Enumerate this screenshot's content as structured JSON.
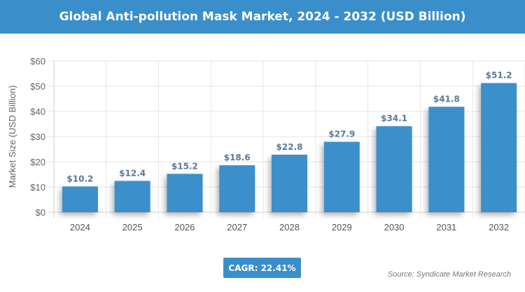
{
  "title": "Global Anti-pollution Mask Market, 2024 - 2032 (USD Billion)",
  "cagr": "CAGR: 22.41%",
  "source": "Source: Syndicate Market Research",
  "chart_data": {
    "type": "bar",
    "categories": [
      "2024",
      "2025",
      "2026",
      "2027",
      "2028",
      "2029",
      "2030",
      "2031",
      "2032"
    ],
    "values": [
      10.2,
      12.4,
      15.2,
      18.6,
      22.8,
      27.9,
      34.1,
      41.8,
      51.2
    ],
    "data_labels": [
      "$10.2",
      "$12.4",
      "$15.2",
      "$18.6",
      "$22.8",
      "$27.9",
      "$34.1",
      "$41.8",
      "$51.2"
    ],
    "ylabel": "Market Size (USD Billion)",
    "ylim": [
      0,
      60
    ],
    "yticks": [
      "$0",
      "$10",
      "$20",
      "$30",
      "$40",
      "$50",
      "$60"
    ],
    "grid": true,
    "bar_color": "#3a8fcb"
  }
}
